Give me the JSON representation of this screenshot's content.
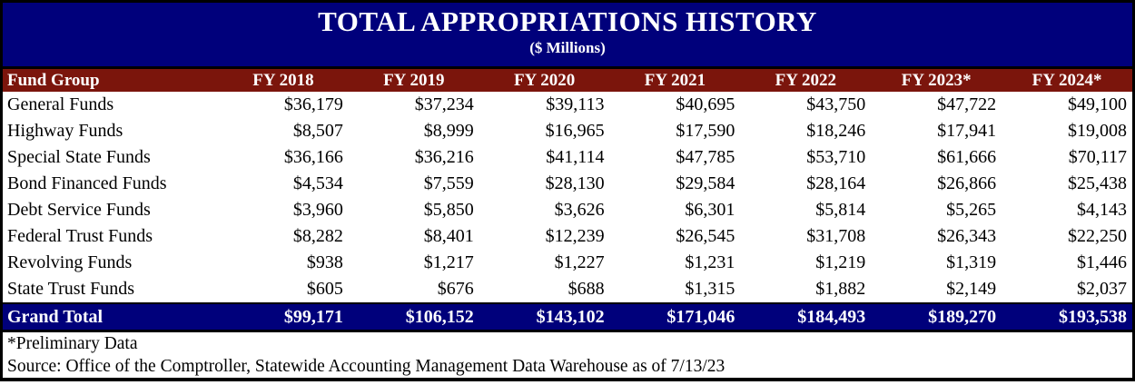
{
  "header": {
    "title": "TOTAL APPROPRIATIONS HISTORY",
    "subtitle": "($ Millions)"
  },
  "table": {
    "columns": [
      "Fund Group",
      "FY 2018",
      "FY 2019",
      "FY 2020",
      "FY 2021",
      "FY 2022",
      "FY 2023*",
      "FY 2024*"
    ],
    "rows": [
      {
        "label": "General Funds",
        "values": [
          "$36,179",
          "$37,234",
          "$39,113",
          "$40,695",
          "$43,750",
          "$47,722",
          "$49,100"
        ]
      },
      {
        "label": "Highway Funds",
        "values": [
          "$8,507",
          "$8,999",
          "$16,965",
          "$17,590",
          "$18,246",
          "$17,941",
          "$19,008"
        ]
      },
      {
        "label": "Special State Funds",
        "values": [
          "$36,166",
          "$36,216",
          "$41,114",
          "$47,785",
          "$53,710",
          "$61,666",
          "$70,117"
        ]
      },
      {
        "label": "Bond Financed Funds",
        "values": [
          "$4,534",
          "$7,559",
          "$28,130",
          "$29,584",
          "$28,164",
          "$26,866",
          "$25,438"
        ]
      },
      {
        "label": "Debt Service Funds",
        "values": [
          "$3,960",
          "$5,850",
          "$3,626",
          "$6,301",
          "$5,814",
          "$5,265",
          "$4,143"
        ]
      },
      {
        "label": "Federal Trust Funds",
        "values": [
          "$8,282",
          "$8,401",
          "$12,239",
          "$26,545",
          "$31,708",
          "$26,343",
          "$22,250"
        ]
      },
      {
        "label": "Revolving Funds",
        "values": [
          "$938",
          "$1,217",
          "$1,227",
          "$1,231",
          "$1,219",
          "$1,319",
          "$1,446"
        ]
      },
      {
        "label": "State Trust Funds",
        "values": [
          "$605",
          "$676",
          "$688",
          "$1,315",
          "$1,882",
          "$2,149",
          "$2,037"
        ]
      }
    ],
    "grand_total": {
      "label": "Grand Total",
      "values": [
        "$99,171",
        "$106,152",
        "$143,102",
        "$171,046",
        "$184,493",
        "$189,270",
        "$193,538"
      ]
    }
  },
  "footer": {
    "note": "*Preliminary Data",
    "source": "Source: Office of the Comptroller, Statewide Accounting Management Data Warehouse as of 7/13/23"
  },
  "colors": {
    "navy": "#00007B",
    "maroon": "#7B150C",
    "band_text": "#FFFFFF",
    "body_text": "#000000"
  }
}
